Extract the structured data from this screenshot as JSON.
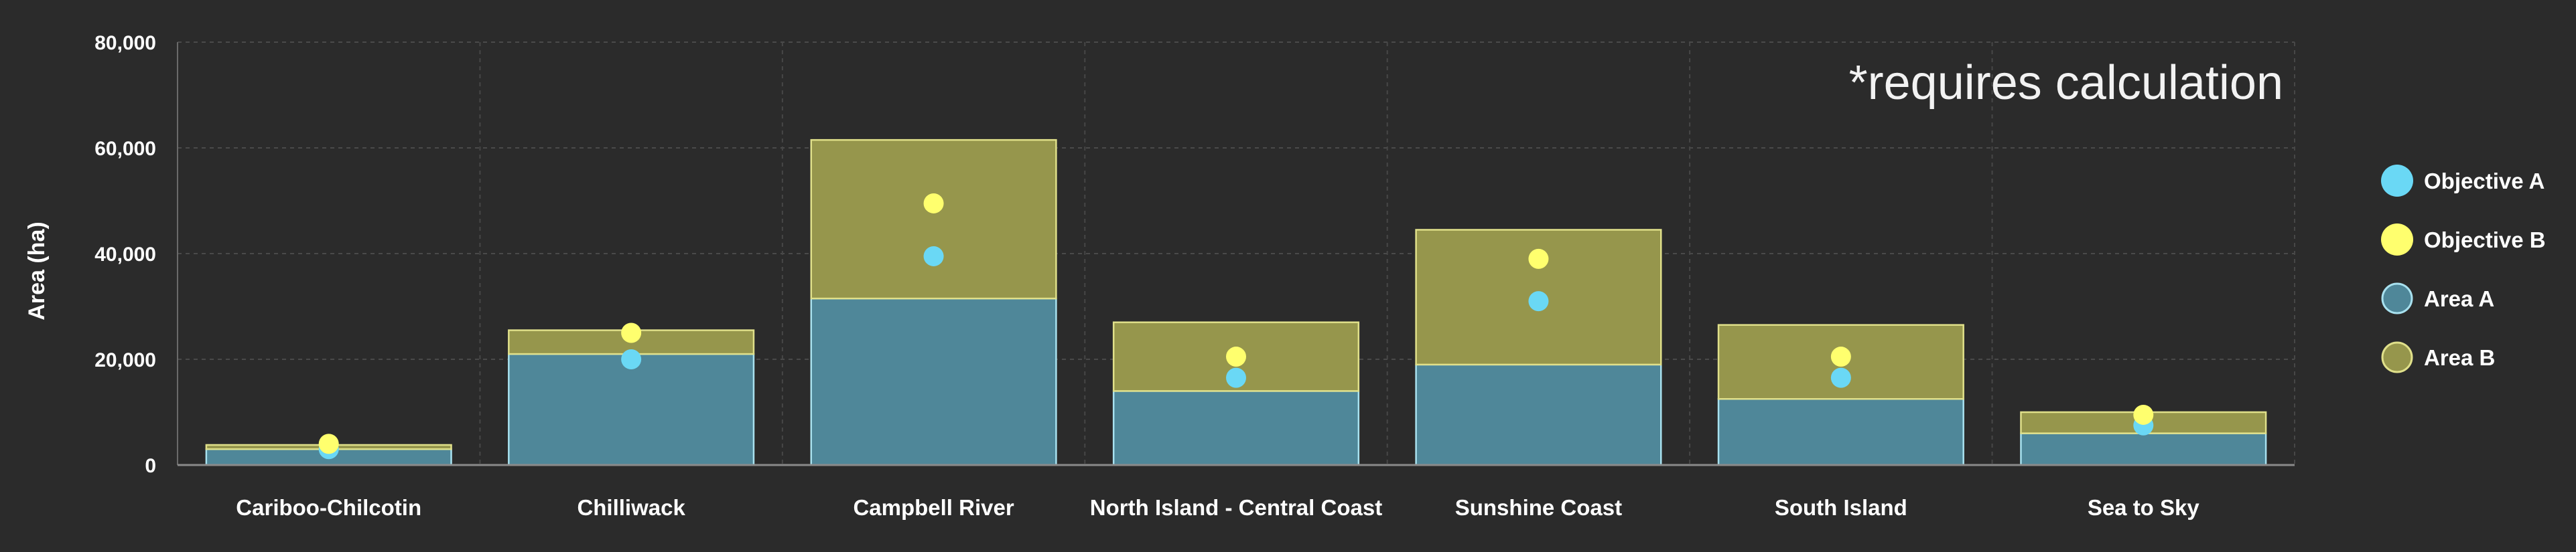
{
  "chart_data": {
    "type": "bar",
    "title": "",
    "annotation": "*requires calculation",
    "xlabel": "",
    "ylabel": "Area (ha)",
    "ylim": [
      0,
      80000
    ],
    "yticks": [
      0,
      20000,
      40000,
      60000,
      80000
    ],
    "ytick_labels": [
      "0",
      "20,000",
      "40,000",
      "60,000",
      "80,000"
    ],
    "grid": true,
    "stacked": true,
    "legend_position": "right",
    "categories": [
      "Cariboo-Chilcotin",
      "Chilliwack",
      "Campbell River",
      "North Island - Central Coast",
      "Sunshine Coast",
      "South Island",
      "Sea to Sky"
    ],
    "series": [
      {
        "name": "Objective A",
        "kind": "point",
        "color": "#6ad8f5",
        "values": [
          3000,
          20000,
          39500,
          16500,
          31000,
          16500,
          7500
        ]
      },
      {
        "name": "Objective B",
        "kind": "point",
        "color": "#ffff6e",
        "values": [
          4000,
          25000,
          49500,
          20500,
          39000,
          20500,
          9500
        ]
      },
      {
        "name": "Area A",
        "kind": "bar",
        "color": "#4f8799",
        "stroke": "#a8e1ef",
        "values": [
          3000,
          21000,
          31500,
          14000,
          19000,
          12500,
          6000
        ]
      },
      {
        "name": "Area B",
        "kind": "bar",
        "color": "#96964c",
        "stroke": "#e0e08a",
        "values": [
          800,
          4500,
          30000,
          13000,
          25500,
          14000,
          4000
        ]
      }
    ]
  }
}
